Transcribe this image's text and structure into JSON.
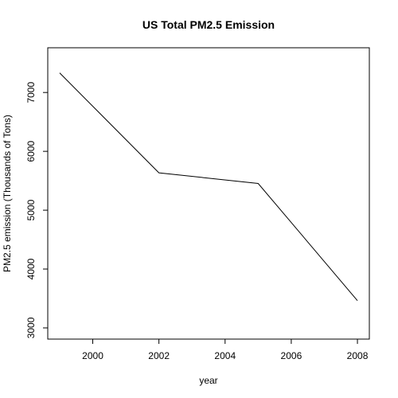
{
  "chart_data": {
    "type": "line",
    "title": "US Total PM2.5 Emission",
    "xlabel": "year",
    "ylabel": "PM2.5 emission (Thousands of Tons)",
    "x": [
      1999,
      2002,
      2005,
      2008
    ],
    "series": [
      {
        "name": "Total PM2.5",
        "values": [
          7332,
          5635,
          5454,
          3464
        ]
      }
    ],
    "xlim": [
      1998.64,
      2008.36
    ],
    "ylim": [
      2810,
      7760
    ],
    "xticks": [
      2000,
      2002,
      2004,
      2006,
      2008
    ],
    "yticks": [
      3000,
      4000,
      5000,
      6000,
      7000
    ],
    "grid": false,
    "legend": "none",
    "line_color": "#000000"
  }
}
